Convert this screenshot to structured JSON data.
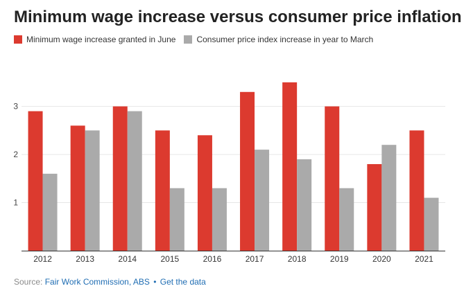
{
  "title": "Minimum wage increase versus consumer price inflation",
  "legend": [
    {
      "label": "Minimum wage increase granted in June",
      "color": "#dc3a2f"
    },
    {
      "label": "Consumer price index increase in year to March",
      "color": "#aaaaaa"
    }
  ],
  "footer": {
    "source_label": "Source:",
    "source_link": "Fair Work Commission, ABS",
    "separator": "•",
    "data_link": "Get the data"
  },
  "chart_data": {
    "type": "bar",
    "categories": [
      "2012",
      "2013",
      "2014",
      "2015",
      "2016",
      "2017",
      "2018",
      "2019",
      "2020",
      "2021"
    ],
    "series": [
      {
        "name": "Minimum wage increase granted in June",
        "color": "#dc3a2f",
        "values": [
          2.9,
          2.6,
          3.0,
          2.5,
          2.4,
          3.3,
          3.5,
          3.0,
          1.8,
          2.5
        ]
      },
      {
        "name": "Consumer price index increase in year to March",
        "color": "#aaaaaa",
        "values": [
          1.6,
          2.5,
          2.9,
          1.3,
          1.3,
          2.1,
          1.9,
          1.3,
          2.2,
          1.1
        ]
      }
    ],
    "yticks": [
      1,
      2,
      3
    ],
    "ylim": [
      0,
      3.7
    ],
    "grid": true,
    "legend_position": "top-left"
  }
}
